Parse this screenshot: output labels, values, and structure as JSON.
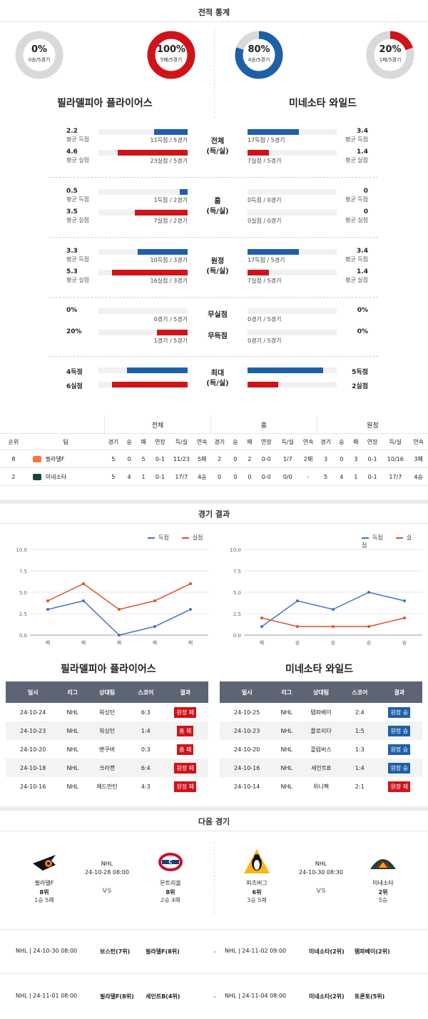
{
  "stats_title": "전적 통계",
  "donuts": [
    {
      "pct": "0%",
      "sub": "0승/5경기",
      "fraction": 0.0,
      "color": "#d0131a"
    },
    {
      "pct": "100%",
      "sub": "5패/5경기",
      "fraction": 1.0,
      "color": "#d0131a"
    },
    {
      "pct": "80%",
      "sub": "4승/5경기",
      "fraction": 0.8,
      "color": "#1f5fa8"
    },
    {
      "pct": "20%",
      "sub": "1패/5경기",
      "fraction": 0.2,
      "color": "#d0131a"
    }
  ],
  "team_left": "필라델피아 플라이어스",
  "team_right": "미네소타 와일드",
  "stat_groups": [
    {
      "center": [
        "전체",
        "(득/실)"
      ],
      "left": [
        {
          "num": "2.2",
          "label": "평균 득점",
          "bar_label": "11득점 / 5경기",
          "fraction": 0.22,
          "color": "blue"
        },
        {
          "num": "4.6",
          "label": "평균 실점",
          "bar_label": "23실점 / 5경기",
          "fraction": 0.46,
          "color": "red"
        }
      ],
      "right": [
        {
          "num": "3.4",
          "label": "평균 득점",
          "bar_label": "17득점 / 5경기",
          "fraction": 0.34,
          "color": "blue"
        },
        {
          "num": "1.4",
          "label": "평균 실점",
          "bar_label": "7실점 / 5경기",
          "fraction": 0.14,
          "color": "red"
        }
      ]
    },
    {
      "center": [
        "홈",
        "(득/실)"
      ],
      "left": [
        {
          "num": "0.5",
          "label": "평균 득점",
          "bar_label": "1득점 / 2경기",
          "fraction": 0.05,
          "color": "blue"
        },
        {
          "num": "3.5",
          "label": "평균 실점",
          "bar_label": "7실점 / 2경기",
          "fraction": 0.35,
          "color": "red"
        }
      ],
      "right": [
        {
          "num": "0",
          "label": "평균 득점",
          "bar_label": "0득점 / 0경기",
          "fraction": 0,
          "color": "blue"
        },
        {
          "num": "0",
          "label": "평균 실점",
          "bar_label": "0실점 / 0경기",
          "fraction": 0,
          "color": "red"
        }
      ]
    },
    {
      "center": [
        "원정",
        "(득/실)"
      ],
      "left": [
        {
          "num": "3.3",
          "label": "평균 득점",
          "bar_label": "10득점 / 3경기",
          "fraction": 0.33,
          "color": "blue"
        },
        {
          "num": "5.3",
          "label": "평균 실점",
          "bar_label": "16실점 / 3경기",
          "fraction": 0.53,
          "color": "red"
        }
      ],
      "right": [
        {
          "num": "3.4",
          "label": "평균 득점",
          "bar_label": "17득점 / 5경기",
          "fraction": 0.34,
          "color": "blue"
        },
        {
          "num": "1.4",
          "label": "평균 실점",
          "bar_label": "7실점 / 5경기",
          "fraction": 0.14,
          "color": "red"
        }
      ]
    }
  ],
  "shutout": {
    "labels": [
      "무실점",
      "무득점"
    ],
    "left": [
      {
        "num": "0%",
        "bar_label": "0경기 / 5경기",
        "fraction": 0,
        "color": "blue"
      },
      {
        "num": "20%",
        "bar_label": "1경기 / 5경기",
        "fraction": 0.2,
        "color": "red"
      }
    ],
    "right": [
      {
        "num": "0%",
        "bar_label": "0경기 / 5경기",
        "fraction": 0,
        "color": "blue"
      },
      {
        "num": "0%",
        "bar_label": "0경기 / 5경기",
        "fraction": 0,
        "color": "red"
      }
    ]
  },
  "max_block": {
    "center": [
      "최대",
      "(득/실)"
    ],
    "left": [
      {
        "num": "4득점",
        "fraction": 0.4,
        "color": "blue"
      },
      {
        "num": "6실점",
        "fraction": 0.6,
        "color": "red"
      }
    ],
    "right": [
      {
        "num": "5득점",
        "fraction": 0.5,
        "color": "blue"
      },
      {
        "num": "2실점",
        "fraction": 0.2,
        "color": "red"
      }
    ]
  },
  "standings": {
    "groups": [
      "전체",
      "홈",
      "원정"
    ],
    "head_left": [
      "순위",
      "팀"
    ],
    "cols": [
      "경기",
      "승",
      "패",
      "연장",
      "득/실",
      "연속"
    ],
    "rows": [
      {
        "rank": "8",
        "team": "필라델F",
        "all": [
          "5",
          "0",
          "5",
          "0-1",
          "11/23",
          "5패"
        ],
        "home": [
          "2",
          "0",
          "2",
          "0-0",
          "1/7",
          "2패"
        ],
        "away": [
          "3",
          "0",
          "3",
          "0-1",
          "10/16",
          "3패"
        ]
      },
      {
        "rank": "2",
        "team": "미네소타",
        "all": [
          "5",
          "4",
          "1",
          "0-1",
          "17/7",
          "4승"
        ],
        "home": [
          "0",
          "0",
          "0",
          "0-0",
          "0/0",
          "-"
        ],
        "away": [
          "5",
          "4",
          "1",
          "0-1",
          "17/7",
          "4승"
        ]
      }
    ]
  },
  "results_title": "경기 결과",
  "legend": {
    "scored": "득점",
    "conceded": "실점"
  },
  "chart_data": [
    {
      "type": "line",
      "categories": [
        "패",
        "패",
        "패",
        "패",
        "패"
      ],
      "series": [
        {
          "name": "득점",
          "values": [
            3,
            4,
            0,
            1,
            3
          ],
          "color": "#4472c4"
        },
        {
          "name": "실점",
          "values": [
            4,
            6,
            3,
            4,
            6
          ],
          "color": "#e0502a"
        }
      ],
      "ylim": [
        0,
        10
      ],
      "yticks": [
        "0.0",
        "2.5",
        "5.0",
        "7.5",
        "10.0"
      ]
    },
    {
      "type": "line",
      "categories": [
        "패",
        "승",
        "승",
        "승",
        "승"
      ],
      "series": [
        {
          "name": "득점",
          "values": [
            1,
            4,
            3,
            5,
            4
          ],
          "color": "#4472c4"
        },
        {
          "name": "실점",
          "values": [
            2,
            1,
            1,
            1,
            2
          ],
          "color": "#e0502a"
        }
      ],
      "ylim": [
        0,
        10
      ],
      "yticks": [
        "0.0",
        "2.5",
        "5.0",
        "7.5",
        "10.0"
      ]
    }
  ],
  "results_left_title": "필라델피아 플라이어스",
  "results_right_title": "미네소타 와일드",
  "results_headers": [
    "일시",
    "리그",
    "상대팀",
    "스코어",
    "결과"
  ],
  "results_left": [
    {
      "date": "24-10-24",
      "league": "NHL",
      "opp": "워싱턴",
      "score": "6:3",
      "result": "원정 패",
      "kind": "lose"
    },
    {
      "date": "24-10-23",
      "league": "NHL",
      "opp": "워싱턴",
      "score": "1:4",
      "result": "홈 패",
      "kind": "lose"
    },
    {
      "date": "24-10-20",
      "league": "NHL",
      "opp": "밴쿠버",
      "score": "0:3",
      "result": "홈 패",
      "kind": "lose"
    },
    {
      "date": "24-10-18",
      "league": "NHL",
      "opp": "크라켄",
      "score": "6:4",
      "result": "원정 패",
      "kind": "lose"
    },
    {
      "date": "24-10-16",
      "league": "NHL",
      "opp": "에드먼턴",
      "score": "4:3",
      "result": "원정 패",
      "kind": "lose"
    }
  ],
  "results_right": [
    {
      "date": "24-10-25",
      "league": "NHL",
      "opp": "탬파베이",
      "score": "2:4",
      "result": "원정 승",
      "kind": "win"
    },
    {
      "date": "24-10-23",
      "league": "NHL",
      "opp": "플로리다",
      "score": "1:5",
      "result": "원정 승",
      "kind": "win"
    },
    {
      "date": "24-10-20",
      "league": "NHL",
      "opp": "콜럼버스",
      "score": "1:3",
      "result": "원정 승",
      "kind": "win"
    },
    {
      "date": "24-10-16",
      "league": "NHL",
      "opp": "세인트B",
      "score": "1:4",
      "result": "원정 승",
      "kind": "win"
    },
    {
      "date": "24-10-14",
      "league": "NHL",
      "opp": "위니펙",
      "score": "2:1",
      "result": "원정 패",
      "kind": "lose"
    }
  ],
  "next_title": "다음 경기",
  "next_games": [
    {
      "league": "NHL",
      "datetime": "24-10-28 08:00",
      "vs": "VS",
      "home": {
        "name": "필라델F",
        "rank": "8위",
        "streak": "1승 5패",
        "logo": "flyers-logo"
      },
      "away": {
        "name": "몬트리올",
        "rank": "8위",
        "streak": "2승 4패",
        "logo": "canadiens-logo"
      }
    },
    {
      "league": "NHL",
      "datetime": "24-10-30 08:30",
      "vs": "VS",
      "home": {
        "name": "피츠버그",
        "rank": "6위",
        "streak": "3승 5패",
        "logo": "penguins-logo"
      },
      "away": {
        "name": "미네소타",
        "rank": "2위",
        "streak": "5승",
        "logo": "wild-logo"
      }
    }
  ],
  "upcoming": [
    {
      "left": {
        "meta": "NHL | 24-10-30 08:00",
        "t1": "보스턴(7위)",
        "t2": "필라델F(8위)"
      },
      "right": {
        "meta": "NHL | 24-11-02 09:00",
        "t1": "미네소타(2위)",
        "t2": "탬파베이(2위)"
      }
    },
    {
      "left": {
        "meta": "NHL | 24-11-01 08:00",
        "t1": "필라델F(8위)",
        "t2": "세인트B(4위)"
      },
      "right": {
        "meta": "NHL | 24-11-04 08:00",
        "t1": "미네소타(2위)",
        "t2": "토론토(5위)"
      }
    }
  ],
  "colors": {
    "blue": "#1f5fa8",
    "red": "#d0131a",
    "gray": "#d9d9d9",
    "table_head": "#5c6573"
  }
}
